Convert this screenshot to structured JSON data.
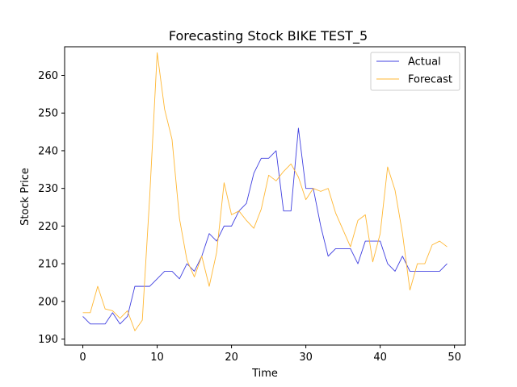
{
  "chart_data": {
    "type": "line",
    "title": "Forecasting Stock BIKE TEST_5",
    "xlabel": "Time",
    "ylabel": "Stock Price",
    "xlim": [
      -2.45,
      51.45
    ],
    "ylim": [
      188.4,
      267.6
    ],
    "xticks": [
      0,
      10,
      20,
      30,
      40,
      50
    ],
    "yticks": [
      190,
      200,
      210,
      220,
      230,
      240,
      250,
      260
    ],
    "grid": false,
    "legend_position": "upper right",
    "series": [
      {
        "name": "Actual",
        "color": "#4040e0",
        "x": [
          0,
          1,
          2,
          3,
          4,
          5,
          6,
          7,
          8,
          9,
          10,
          11,
          12,
          13,
          14,
          15,
          16,
          17,
          18,
          19,
          20,
          21,
          22,
          23,
          24,
          25,
          26,
          27,
          28,
          29,
          30,
          31,
          32,
          33,
          34,
          35,
          36,
          37,
          38,
          39,
          40,
          41,
          42,
          43,
          44,
          45,
          46,
          47,
          48,
          49
        ],
        "values": [
          196,
          194,
          194,
          194,
          197,
          194,
          196,
          204,
          204,
          204,
          206,
          208,
          208,
          206,
          210,
          208,
          212,
          218,
          216,
          220,
          220,
          224,
          226,
          234,
          238,
          238,
          240,
          224,
          224,
          246,
          230,
          230,
          220,
          212,
          214,
          214,
          214,
          210,
          216,
          216,
          216,
          210,
          208,
          212,
          208,
          208,
          208,
          208,
          208,
          210
        ]
      },
      {
        "name": "Forecast",
        "color": "#ffb733",
        "x": [
          0,
          1,
          2,
          3,
          4,
          5,
          6,
          7,
          8,
          9,
          10,
          11,
          12,
          13,
          14,
          15,
          16,
          17,
          18,
          19,
          20,
          21,
          22,
          23,
          24,
          25,
          26,
          27,
          28,
          29,
          30,
          31,
          32,
          33,
          34,
          35,
          36,
          37,
          38,
          39,
          40,
          41,
          42,
          43,
          44,
          45,
          46,
          47,
          48,
          49
        ],
        "values": [
          197,
          197,
          204,
          198,
          197.5,
          195.5,
          197.5,
          192.2,
          195,
          228,
          266,
          251,
          243,
          222,
          211,
          206.5,
          212,
          204,
          213,
          231.5,
          223,
          224,
          221.5,
          219.4,
          224.5,
          233.5,
          232,
          234.5,
          236.5,
          233,
          227,
          230,
          229.2,
          230,
          223.5,
          219,
          214.5,
          221.5,
          223,
          210.5,
          218,
          235.7,
          229.5,
          218,
          203,
          210,
          210,
          215,
          216,
          214.5
        ]
      }
    ]
  }
}
